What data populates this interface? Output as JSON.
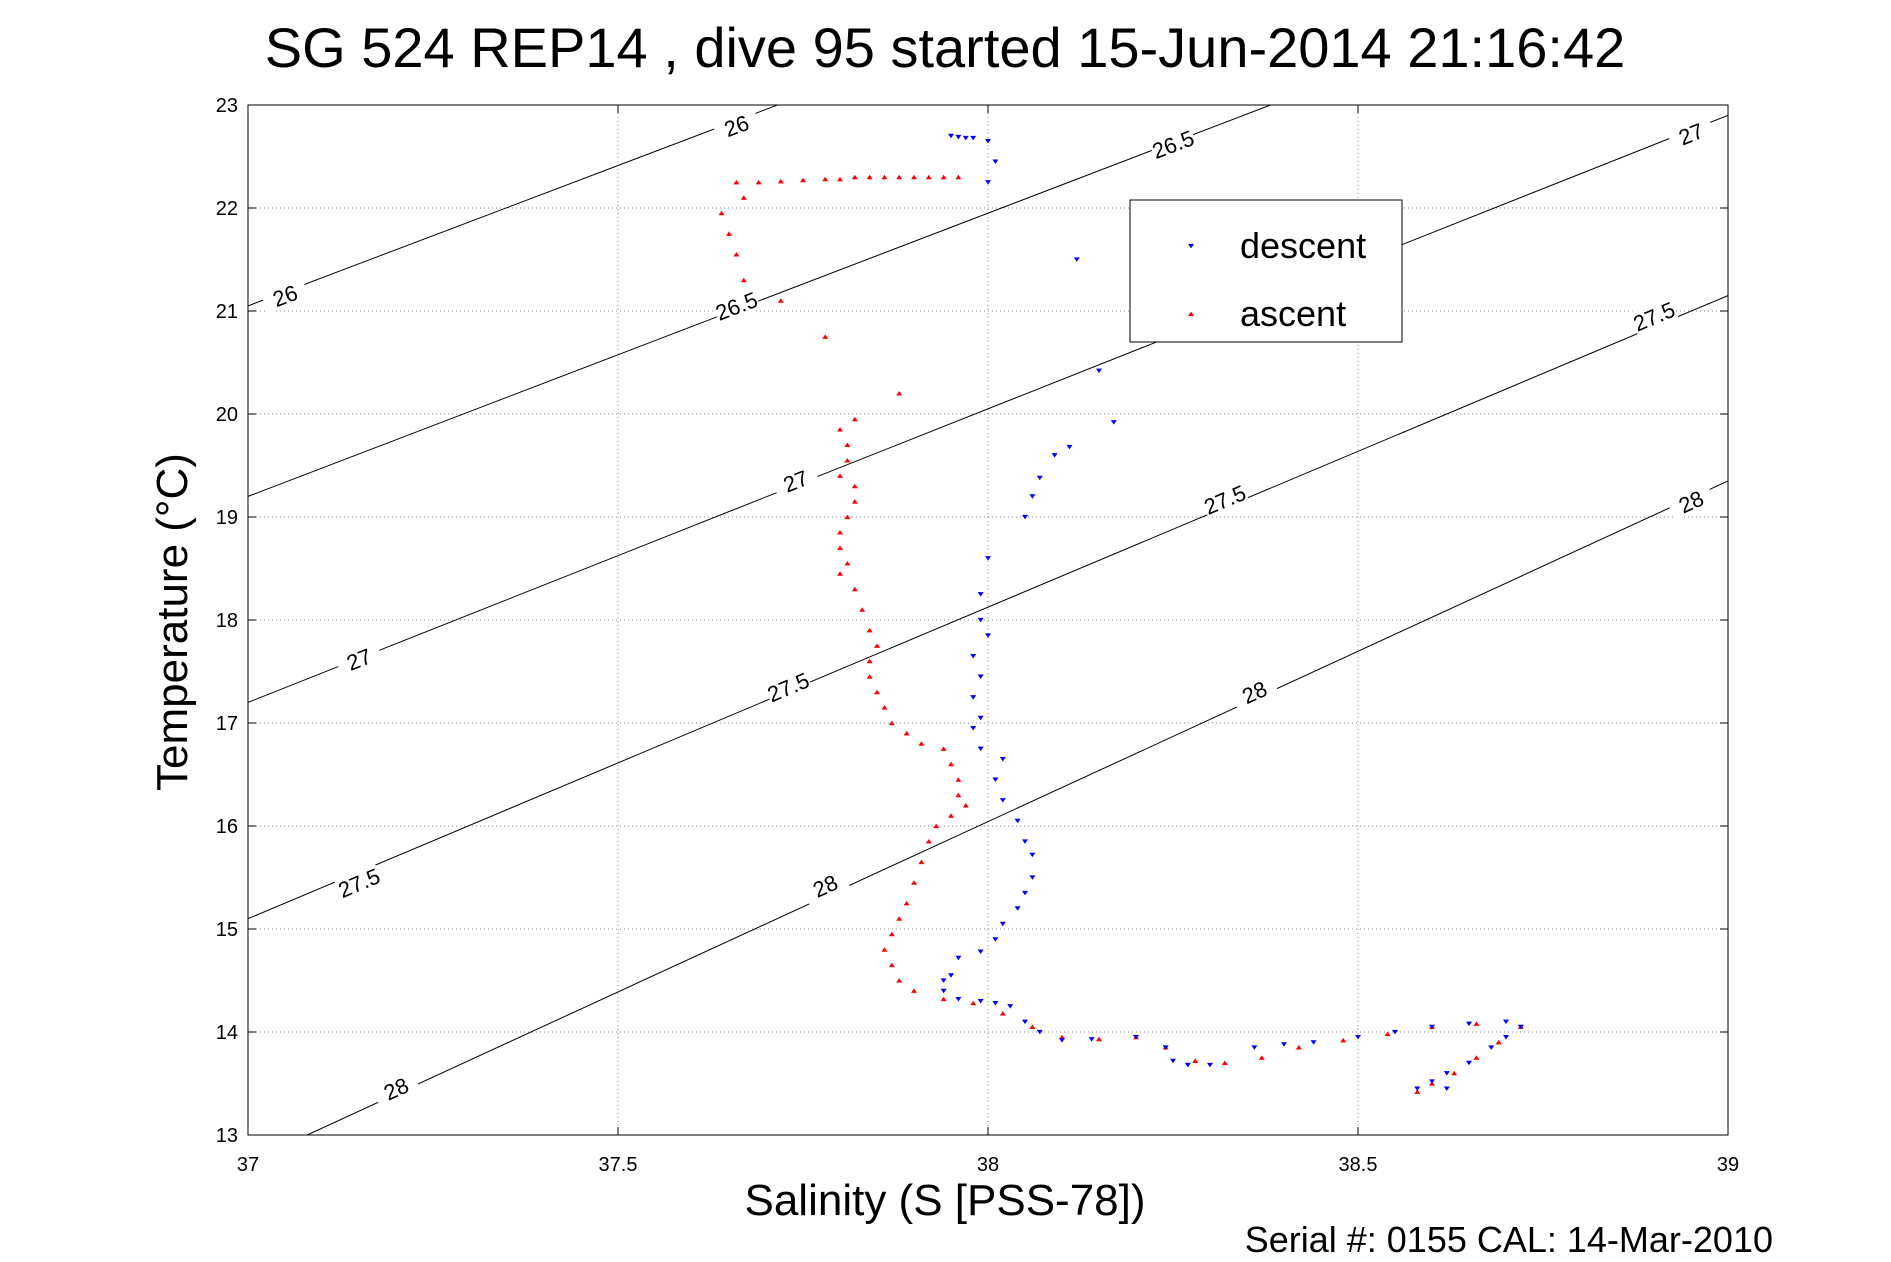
{
  "chart_data": {
    "type": "scatter",
    "title": "SG 524   REP14  , dive 95 started 15-Jun-2014 21:16:42",
    "xlabel": "Salinity (S [PSS-78])",
    "ylabel": "Temperature (°C)",
    "footer": "Serial #: 0155  CAL: 14-Mar-2010",
    "xlim": [
      37,
      39
    ],
    "ylim": [
      13,
      23
    ],
    "x_ticks": [
      "37",
      "37.5",
      "38",
      "38.5",
      "39"
    ],
    "y_ticks": [
      "13",
      "14",
      "15",
      "16",
      "17",
      "18",
      "19",
      "20",
      "21",
      "22",
      "23"
    ],
    "grid": true,
    "legend_position": "top-right",
    "contours": [
      {
        "level": "26",
        "points": [
          [
            37.0,
            21.05
          ],
          [
            39.0,
            26.5
          ]
        ],
        "labels": [
          [
            37.05,
            21.15
          ],
          [
            37.66,
            22.8
          ]
        ]
      },
      {
        "level": "26.5",
        "points": [
          [
            37.0,
            19.2
          ],
          [
            39.0,
            24.7
          ]
        ],
        "labels": [
          [
            37.66,
            21.05
          ],
          [
            38.25,
            22.62
          ]
        ]
      },
      {
        "level": "27",
        "points": [
          [
            37.0,
            17.2
          ],
          [
            39.0,
            22.9
          ]
        ],
        "labels": [
          [
            37.15,
            17.62
          ],
          [
            37.74,
            19.35
          ],
          [
            38.95,
            22.72
          ]
        ]
      },
      {
        "level": "27.5",
        "points": [
          [
            37.0,
            15.1
          ],
          [
            39.0,
            21.15
          ]
        ],
        "labels": [
          [
            37.15,
            15.45
          ],
          [
            37.73,
            17.35
          ],
          [
            38.32,
            19.17
          ],
          [
            38.9,
            20.95
          ]
        ]
      },
      {
        "level": "28",
        "points": [
          [
            37.08,
            13.0
          ],
          [
            39.0,
            19.35
          ]
        ],
        "labels": [
          [
            37.2,
            13.45
          ],
          [
            37.78,
            15.42
          ],
          [
            38.36,
            17.3
          ],
          [
            38.95,
            19.15
          ]
        ]
      }
    ],
    "series": [
      {
        "name": "descent",
        "color": "#0000ff",
        "marker": "triangle-down",
        "points": [
          [
            37.95,
            22.7
          ],
          [
            37.96,
            22.69
          ],
          [
            37.97,
            22.68
          ],
          [
            37.98,
            22.68
          ],
          [
            38.0,
            22.65
          ],
          [
            38.01,
            22.45
          ],
          [
            38.0,
            22.25
          ],
          [
            38.12,
            21.5
          ],
          [
            38.15,
            20.42
          ],
          [
            38.17,
            19.92
          ],
          [
            38.11,
            19.68
          ],
          [
            38.09,
            19.6
          ],
          [
            38.07,
            19.38
          ],
          [
            38.06,
            19.2
          ],
          [
            38.05,
            19.0
          ],
          [
            38.0,
            18.6
          ],
          [
            37.99,
            18.25
          ],
          [
            37.99,
            18.0
          ],
          [
            38.0,
            17.85
          ],
          [
            37.98,
            17.65
          ],
          [
            37.99,
            17.45
          ],
          [
            37.98,
            17.25
          ],
          [
            37.99,
            17.05
          ],
          [
            37.98,
            16.95
          ],
          [
            37.99,
            16.75
          ],
          [
            38.02,
            16.65
          ],
          [
            38.01,
            16.45
          ],
          [
            38.02,
            16.25
          ],
          [
            38.04,
            16.05
          ],
          [
            38.05,
            15.85
          ],
          [
            38.06,
            15.72
          ],
          [
            38.06,
            15.5
          ],
          [
            38.05,
            15.35
          ],
          [
            38.04,
            15.2
          ],
          [
            38.02,
            15.05
          ],
          [
            38.01,
            14.9
          ],
          [
            37.99,
            14.78
          ],
          [
            37.96,
            14.72
          ],
          [
            37.95,
            14.55
          ],
          [
            37.94,
            14.5
          ],
          [
            37.94,
            14.4
          ],
          [
            37.96,
            14.32
          ],
          [
            37.99,
            14.3
          ],
          [
            38.01,
            14.28
          ],
          [
            38.03,
            14.25
          ],
          [
            38.05,
            14.1
          ],
          [
            38.07,
            14.0
          ],
          [
            38.1,
            13.92
          ],
          [
            38.14,
            13.93
          ],
          [
            38.2,
            13.95
          ],
          [
            38.24,
            13.85
          ],
          [
            38.25,
            13.72
          ],
          [
            38.27,
            13.68
          ],
          [
            38.3,
            13.68
          ],
          [
            38.36,
            13.85
          ],
          [
            38.4,
            13.88
          ],
          [
            38.44,
            13.9
          ],
          [
            38.5,
            13.95
          ],
          [
            38.55,
            14.0
          ],
          [
            38.6,
            14.05
          ],
          [
            38.65,
            14.08
          ],
          [
            38.7,
            14.1
          ],
          [
            38.72,
            14.05
          ],
          [
            38.7,
            13.95
          ],
          [
            38.68,
            13.85
          ],
          [
            38.65,
            13.7
          ],
          [
            38.62,
            13.6
          ],
          [
            38.6,
            13.52
          ],
          [
            38.58,
            13.45
          ],
          [
            38.62,
            13.45
          ]
        ]
      },
      {
        "name": "ascent",
        "color": "#ff0000",
        "marker": "triangle-up",
        "points": [
          [
            37.96,
            22.3
          ],
          [
            37.94,
            22.3
          ],
          [
            37.92,
            22.3
          ],
          [
            37.9,
            22.3
          ],
          [
            37.88,
            22.3
          ],
          [
            37.86,
            22.3
          ],
          [
            37.84,
            22.3
          ],
          [
            37.82,
            22.3
          ],
          [
            37.8,
            22.28
          ],
          [
            37.78,
            22.28
          ],
          [
            37.75,
            22.27
          ],
          [
            37.72,
            22.26
          ],
          [
            37.69,
            22.25
          ],
          [
            37.67,
            22.1
          ],
          [
            37.66,
            22.25
          ],
          [
            37.64,
            21.95
          ],
          [
            37.65,
            21.75
          ],
          [
            37.66,
            21.55
          ],
          [
            37.67,
            21.3
          ],
          [
            37.72,
            21.1
          ],
          [
            37.78,
            20.75
          ],
          [
            37.88,
            20.2
          ],
          [
            37.82,
            19.95
          ],
          [
            37.8,
            19.85
          ],
          [
            37.81,
            19.7
          ],
          [
            37.81,
            19.55
          ],
          [
            37.8,
            19.4
          ],
          [
            37.82,
            19.3
          ],
          [
            37.82,
            19.15
          ],
          [
            37.81,
            19.0
          ],
          [
            37.8,
            18.85
          ],
          [
            37.8,
            18.7
          ],
          [
            37.81,
            18.55
          ],
          [
            37.8,
            18.45
          ],
          [
            37.82,
            18.3
          ],
          [
            37.83,
            18.1
          ],
          [
            37.84,
            17.9
          ],
          [
            37.85,
            17.75
          ],
          [
            37.84,
            17.6
          ],
          [
            37.84,
            17.45
          ],
          [
            37.85,
            17.3
          ],
          [
            37.86,
            17.15
          ],
          [
            37.87,
            17.0
          ],
          [
            37.89,
            16.9
          ],
          [
            37.91,
            16.8
          ],
          [
            37.94,
            16.75
          ],
          [
            37.95,
            16.6
          ],
          [
            37.96,
            16.45
          ],
          [
            37.96,
            16.3
          ],
          [
            37.97,
            16.2
          ],
          [
            37.95,
            16.1
          ],
          [
            37.93,
            16.0
          ],
          [
            37.92,
            15.85
          ],
          [
            37.91,
            15.65
          ],
          [
            37.9,
            15.45
          ],
          [
            37.89,
            15.25
          ],
          [
            37.88,
            15.1
          ],
          [
            37.87,
            14.95
          ],
          [
            37.86,
            14.8
          ],
          [
            37.87,
            14.65
          ],
          [
            37.88,
            14.5
          ],
          [
            37.9,
            14.4
          ],
          [
            37.94,
            14.32
          ],
          [
            37.98,
            14.28
          ],
          [
            38.02,
            14.18
          ],
          [
            38.06,
            14.05
          ],
          [
            38.1,
            13.95
          ],
          [
            38.15,
            13.93
          ],
          [
            38.2,
            13.95
          ],
          [
            38.24,
            13.85
          ],
          [
            38.28,
            13.72
          ],
          [
            38.32,
            13.7
          ],
          [
            38.37,
            13.75
          ],
          [
            38.42,
            13.85
          ],
          [
            38.48,
            13.92
          ],
          [
            38.54,
            13.98
          ],
          [
            38.6,
            14.05
          ],
          [
            38.66,
            14.08
          ],
          [
            38.72,
            14.05
          ],
          [
            38.69,
            13.9
          ],
          [
            38.66,
            13.75
          ],
          [
            38.63,
            13.6
          ],
          [
            38.6,
            13.5
          ],
          [
            38.58,
            13.42
          ]
        ]
      }
    ]
  }
}
